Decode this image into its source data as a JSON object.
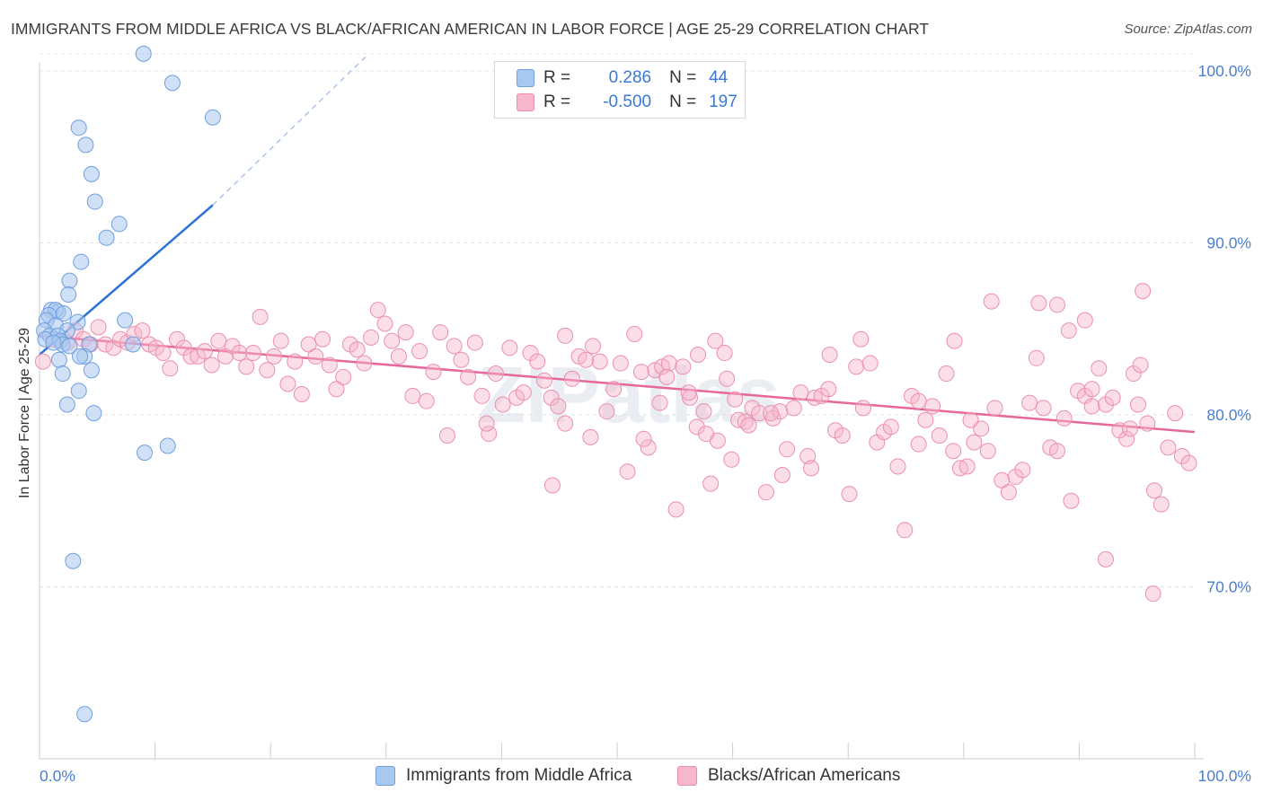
{
  "title": "IMMIGRANTS FROM MIDDLE AFRICA VS BLACK/AFRICAN AMERICAN IN LABOR FORCE | AGE 25-29 CORRELATION CHART",
  "source": "Source: ZipAtlas.com",
  "watermark": "ZIPatlas",
  "legend": {
    "row1": {
      "r_label": "R =",
      "r_value": "0.286",
      "n_label": "N =",
      "n_value": "44"
    },
    "row2": {
      "r_label": "R =",
      "r_value": "-0.500",
      "n_label": "N =",
      "n_value": "197"
    }
  },
  "bottom_legend": {
    "series1": "Immigrants from Middle Africa",
    "series2": "Blacks/African Americans"
  },
  "colors": {
    "blue_fill": "#a9c8f0",
    "blue_stroke": "#6f9fe0",
    "blue_line": "#2f72d6",
    "pink_fill": "#f6b6cb",
    "pink_stroke": "#ec8fae",
    "pink_line": "#e7679a",
    "tick_text": "#4a7fd0",
    "grid": "#e2e2e2"
  },
  "chart_data": {
    "type": "scatter",
    "ylabel": "In Labor Force | Age 25-29",
    "xlabel": "",
    "xlim": [
      0,
      100
    ],
    "ylim": [
      60.5,
      101.5
    ],
    "x_tick_labels": [
      {
        "value": 0,
        "label": "0.0%"
      },
      {
        "value": 100,
        "label": "100.0%"
      }
    ],
    "y_tick_labels": [
      {
        "value": 100,
        "label": "100.0%"
      },
      {
        "value": 90,
        "label": "90.0%"
      },
      {
        "value": 80,
        "label": "80.0%"
      },
      {
        "value": 70,
        "label": "70.0%"
      }
    ],
    "grid": true,
    "legend_position": "top-center",
    "series": [
      {
        "name": "Immigrants from Middle Africa",
        "R": 0.286,
        "N": 44,
        "trend": {
          "x0": 0.0,
          "y0": 83.5,
          "x1": 15.0,
          "y1": 92.2,
          "x_dash_end": 28.5,
          "y_dash_end": 101.0
        },
        "points": [
          [
            9.0,
            101.0
          ],
          [
            11.5,
            99.3
          ],
          [
            15.0,
            97.3
          ],
          [
            3.4,
            96.7
          ],
          [
            4.0,
            95.7
          ],
          [
            4.5,
            94.0
          ],
          [
            4.8,
            92.4
          ],
          [
            6.9,
            91.1
          ],
          [
            5.8,
            90.3
          ],
          [
            3.6,
            88.9
          ],
          [
            2.6,
            87.8
          ],
          [
            2.5,
            87.0
          ],
          [
            1.0,
            86.1
          ],
          [
            1.6,
            86.0
          ],
          [
            1.4,
            86.1
          ],
          [
            0.8,
            85.8
          ],
          [
            2.1,
            85.9
          ],
          [
            0.6,
            85.5
          ],
          [
            3.3,
            85.4
          ],
          [
            7.4,
            85.5
          ],
          [
            1.4,
            85.2
          ],
          [
            0.4,
            84.9
          ],
          [
            2.4,
            84.9
          ],
          [
            0.9,
            84.6
          ],
          [
            1.6,
            84.6
          ],
          [
            0.5,
            84.4
          ],
          [
            1.8,
            84.3
          ],
          [
            2.0,
            84.1
          ],
          [
            8.1,
            84.1
          ],
          [
            1.2,
            84.2
          ],
          [
            2.6,
            84.0
          ],
          [
            4.3,
            84.1
          ],
          [
            3.9,
            83.4
          ],
          [
            1.7,
            83.2
          ],
          [
            3.5,
            83.4
          ],
          [
            4.5,
            82.6
          ],
          [
            2.0,
            82.4
          ],
          [
            3.4,
            81.4
          ],
          [
            2.4,
            80.6
          ],
          [
            4.7,
            80.1
          ],
          [
            9.1,
            77.8
          ],
          [
            11.1,
            78.2
          ],
          [
            2.9,
            71.5
          ],
          [
            3.9,
            62.6
          ]
        ]
      },
      {
        "name": "Blacks/African Americans",
        "R": -0.5,
        "N": 197,
        "trend": {
          "x0": 0.0,
          "y0": 84.6,
          "x1": 100.0,
          "y1": 79.0
        },
        "points": [
          [
            0.3,
            83.1
          ],
          [
            1.2,
            84.4
          ],
          [
            2.4,
            84.2
          ],
          [
            3.1,
            84.9
          ],
          [
            3.8,
            84.4
          ],
          [
            4.4,
            84.1
          ],
          [
            5.1,
            85.1
          ],
          [
            5.7,
            84.1
          ],
          [
            6.4,
            83.9
          ],
          [
            7.0,
            84.4
          ],
          [
            7.6,
            84.2
          ],
          [
            8.2,
            84.7
          ],
          [
            8.9,
            84.9
          ],
          [
            9.5,
            84.1
          ],
          [
            10.1,
            83.9
          ],
          [
            10.7,
            83.6
          ],
          [
            11.3,
            82.7
          ],
          [
            11.9,
            84.4
          ],
          [
            12.5,
            83.9
          ],
          [
            13.1,
            83.4
          ],
          [
            13.7,
            83.4
          ],
          [
            14.3,
            83.7
          ],
          [
            14.9,
            82.9
          ],
          [
            15.5,
            84.3
          ],
          [
            16.1,
            83.4
          ],
          [
            16.7,
            84.0
          ],
          [
            17.3,
            83.6
          ],
          [
            17.9,
            82.8
          ],
          [
            18.5,
            83.6
          ],
          [
            19.1,
            85.7
          ],
          [
            19.7,
            82.6
          ],
          [
            20.3,
            83.4
          ],
          [
            20.9,
            84.3
          ],
          [
            21.5,
            81.8
          ],
          [
            22.1,
            83.1
          ],
          [
            22.7,
            81.2
          ],
          [
            23.3,
            84.1
          ],
          [
            23.9,
            83.4
          ],
          [
            24.5,
            84.4
          ],
          [
            25.1,
            82.9
          ],
          [
            25.7,
            81.5
          ],
          [
            26.3,
            82.2
          ],
          [
            26.9,
            84.1
          ],
          [
            27.5,
            83.8
          ],
          [
            28.1,
            83.0
          ],
          [
            28.7,
            84.5
          ],
          [
            29.3,
            86.1
          ],
          [
            29.9,
            85.3
          ],
          [
            30.5,
            84.3
          ],
          [
            31.1,
            83.4
          ],
          [
            31.7,
            84.8
          ],
          [
            32.3,
            81.1
          ],
          [
            32.9,
            83.7
          ],
          [
            33.5,
            80.8
          ],
          [
            34.1,
            82.5
          ],
          [
            34.7,
            84.8
          ],
          [
            35.3,
            78.8
          ],
          [
            35.9,
            84.0
          ],
          [
            36.5,
            83.2
          ],
          [
            37.1,
            82.2
          ],
          [
            37.7,
            84.2
          ],
          [
            38.3,
            81.1
          ],
          [
            38.9,
            78.9
          ],
          [
            39.5,
            82.4
          ],
          [
            40.1,
            80.6
          ],
          [
            40.7,
            83.9
          ],
          [
            41.3,
            81.0
          ],
          [
            41.9,
            81.3
          ],
          [
            42.5,
            83.6
          ],
          [
            43.1,
            83.1
          ],
          [
            43.7,
            82.0
          ],
          [
            44.3,
            81.0
          ],
          [
            44.9,
            80.5
          ],
          [
            45.5,
            79.5
          ],
          [
            46.1,
            82.1
          ],
          [
            46.7,
            83.4
          ],
          [
            47.3,
            83.2
          ],
          [
            47.9,
            84.0
          ],
          [
            48.5,
            83.1
          ],
          [
            49.1,
            80.2
          ],
          [
            49.7,
            81.5
          ],
          [
            50.3,
            83.0
          ],
          [
            50.9,
            76.7
          ],
          [
            51.5,
            84.7
          ],
          [
            52.1,
            82.5
          ],
          [
            52.7,
            78.1
          ],
          [
            53.3,
            82.6
          ],
          [
            53.9,
            82.8
          ],
          [
            54.5,
            83.0
          ],
          [
            55.1,
            74.5
          ],
          [
            55.7,
            82.8
          ],
          [
            56.3,
            81.0
          ],
          [
            56.9,
            79.3
          ],
          [
            57.5,
            80.2
          ],
          [
            58.1,
            76.0
          ],
          [
            58.7,
            78.5
          ],
          [
            59.3,
            83.6
          ],
          [
            59.9,
            77.4
          ],
          [
            60.5,
            79.7
          ],
          [
            61.1,
            79.6
          ],
          [
            61.7,
            80.4
          ],
          [
            62.3,
            80.1
          ],
          [
            62.9,
            75.5
          ],
          [
            63.5,
            79.8
          ],
          [
            64.1,
            80.2
          ],
          [
            64.7,
            78.0
          ],
          [
            65.3,
            80.4
          ],
          [
            65.9,
            81.3
          ],
          [
            66.5,
            77.6
          ],
          [
            67.1,
            81.0
          ],
          [
            67.7,
            81.1
          ],
          [
            68.3,
            81.5
          ],
          [
            68.9,
            79.1
          ],
          [
            69.5,
            78.8
          ],
          [
            70.1,
            75.4
          ],
          [
            70.7,
            82.8
          ],
          [
            71.3,
            80.4
          ],
          [
            71.9,
            83.0
          ],
          [
            72.5,
            78.4
          ],
          [
            73.1,
            79.0
          ],
          [
            73.7,
            79.3
          ],
          [
            74.3,
            77.0
          ],
          [
            74.9,
            73.3
          ],
          [
            75.5,
            81.1
          ],
          [
            76.1,
            78.3
          ],
          [
            76.7,
            79.7
          ],
          [
            77.3,
            80.5
          ],
          [
            77.9,
            78.8
          ],
          [
            78.5,
            82.4
          ],
          [
            79.1,
            77.9
          ],
          [
            79.7,
            76.9
          ],
          [
            80.3,
            77.0
          ],
          [
            80.9,
            78.4
          ],
          [
            81.5,
            79.2
          ],
          [
            82.1,
            77.9
          ],
          [
            82.7,
            80.4
          ],
          [
            83.3,
            76.2
          ],
          [
            83.9,
            75.5
          ],
          [
            84.5,
            76.4
          ],
          [
            85.1,
            76.8
          ],
          [
            85.7,
            80.7
          ],
          [
            86.3,
            83.3
          ],
          [
            86.9,
            80.4
          ],
          [
            87.5,
            78.1
          ],
          [
            88.1,
            77.9
          ],
          [
            88.7,
            79.8
          ],
          [
            89.3,
            75.0
          ],
          [
            89.9,
            81.4
          ],
          [
            90.5,
            81.1
          ],
          [
            91.1,
            80.5
          ],
          [
            91.7,
            82.7
          ],
          [
            92.3,
            80.6
          ],
          [
            92.9,
            81.0
          ],
          [
            93.5,
            79.1
          ],
          [
            94.1,
            78.6
          ],
          [
            94.7,
            82.4
          ],
          [
            95.3,
            82.9
          ],
          [
            95.9,
            79.5
          ],
          [
            96.5,
            75.6
          ],
          [
            97.1,
            74.8
          ],
          [
            97.7,
            78.1
          ],
          [
            98.3,
            80.1
          ],
          [
            98.9,
            77.6
          ],
          [
            99.5,
            77.2
          ],
          [
            86.5,
            86.5
          ],
          [
            88.1,
            86.4
          ],
          [
            82.4,
            86.6
          ],
          [
            95.5,
            87.2
          ],
          [
            89.1,
            84.9
          ],
          [
            90.5,
            85.5
          ],
          [
            91.1,
            81.5
          ],
          [
            94.4,
            79.2
          ],
          [
            95.1,
            80.6
          ],
          [
            92.3,
            71.6
          ],
          [
            96.4,
            69.6
          ],
          [
            71.1,
            84.4
          ],
          [
            68.4,
            83.5
          ],
          [
            79.2,
            84.3
          ],
          [
            80.6,
            79.7
          ],
          [
            76.1,
            80.8
          ],
          [
            61.4,
            79.4
          ],
          [
            57.7,
            78.9
          ],
          [
            63.3,
            80.1
          ],
          [
            64.3,
            76.5
          ],
          [
            66.8,
            76.9
          ],
          [
            52.3,
            78.6
          ],
          [
            47.7,
            78.7
          ],
          [
            44.4,
            75.9
          ],
          [
            38.7,
            79.5
          ],
          [
            56.2,
            81.3
          ],
          [
            60.2,
            80.9
          ],
          [
            59.5,
            82.1
          ],
          [
            58.5,
            84.3
          ],
          [
            53.7,
            80.7
          ],
          [
            54.3,
            82.2
          ],
          [
            57.0,
            83.5
          ],
          [
            45.5,
            84.6
          ]
        ]
      }
    ]
  }
}
